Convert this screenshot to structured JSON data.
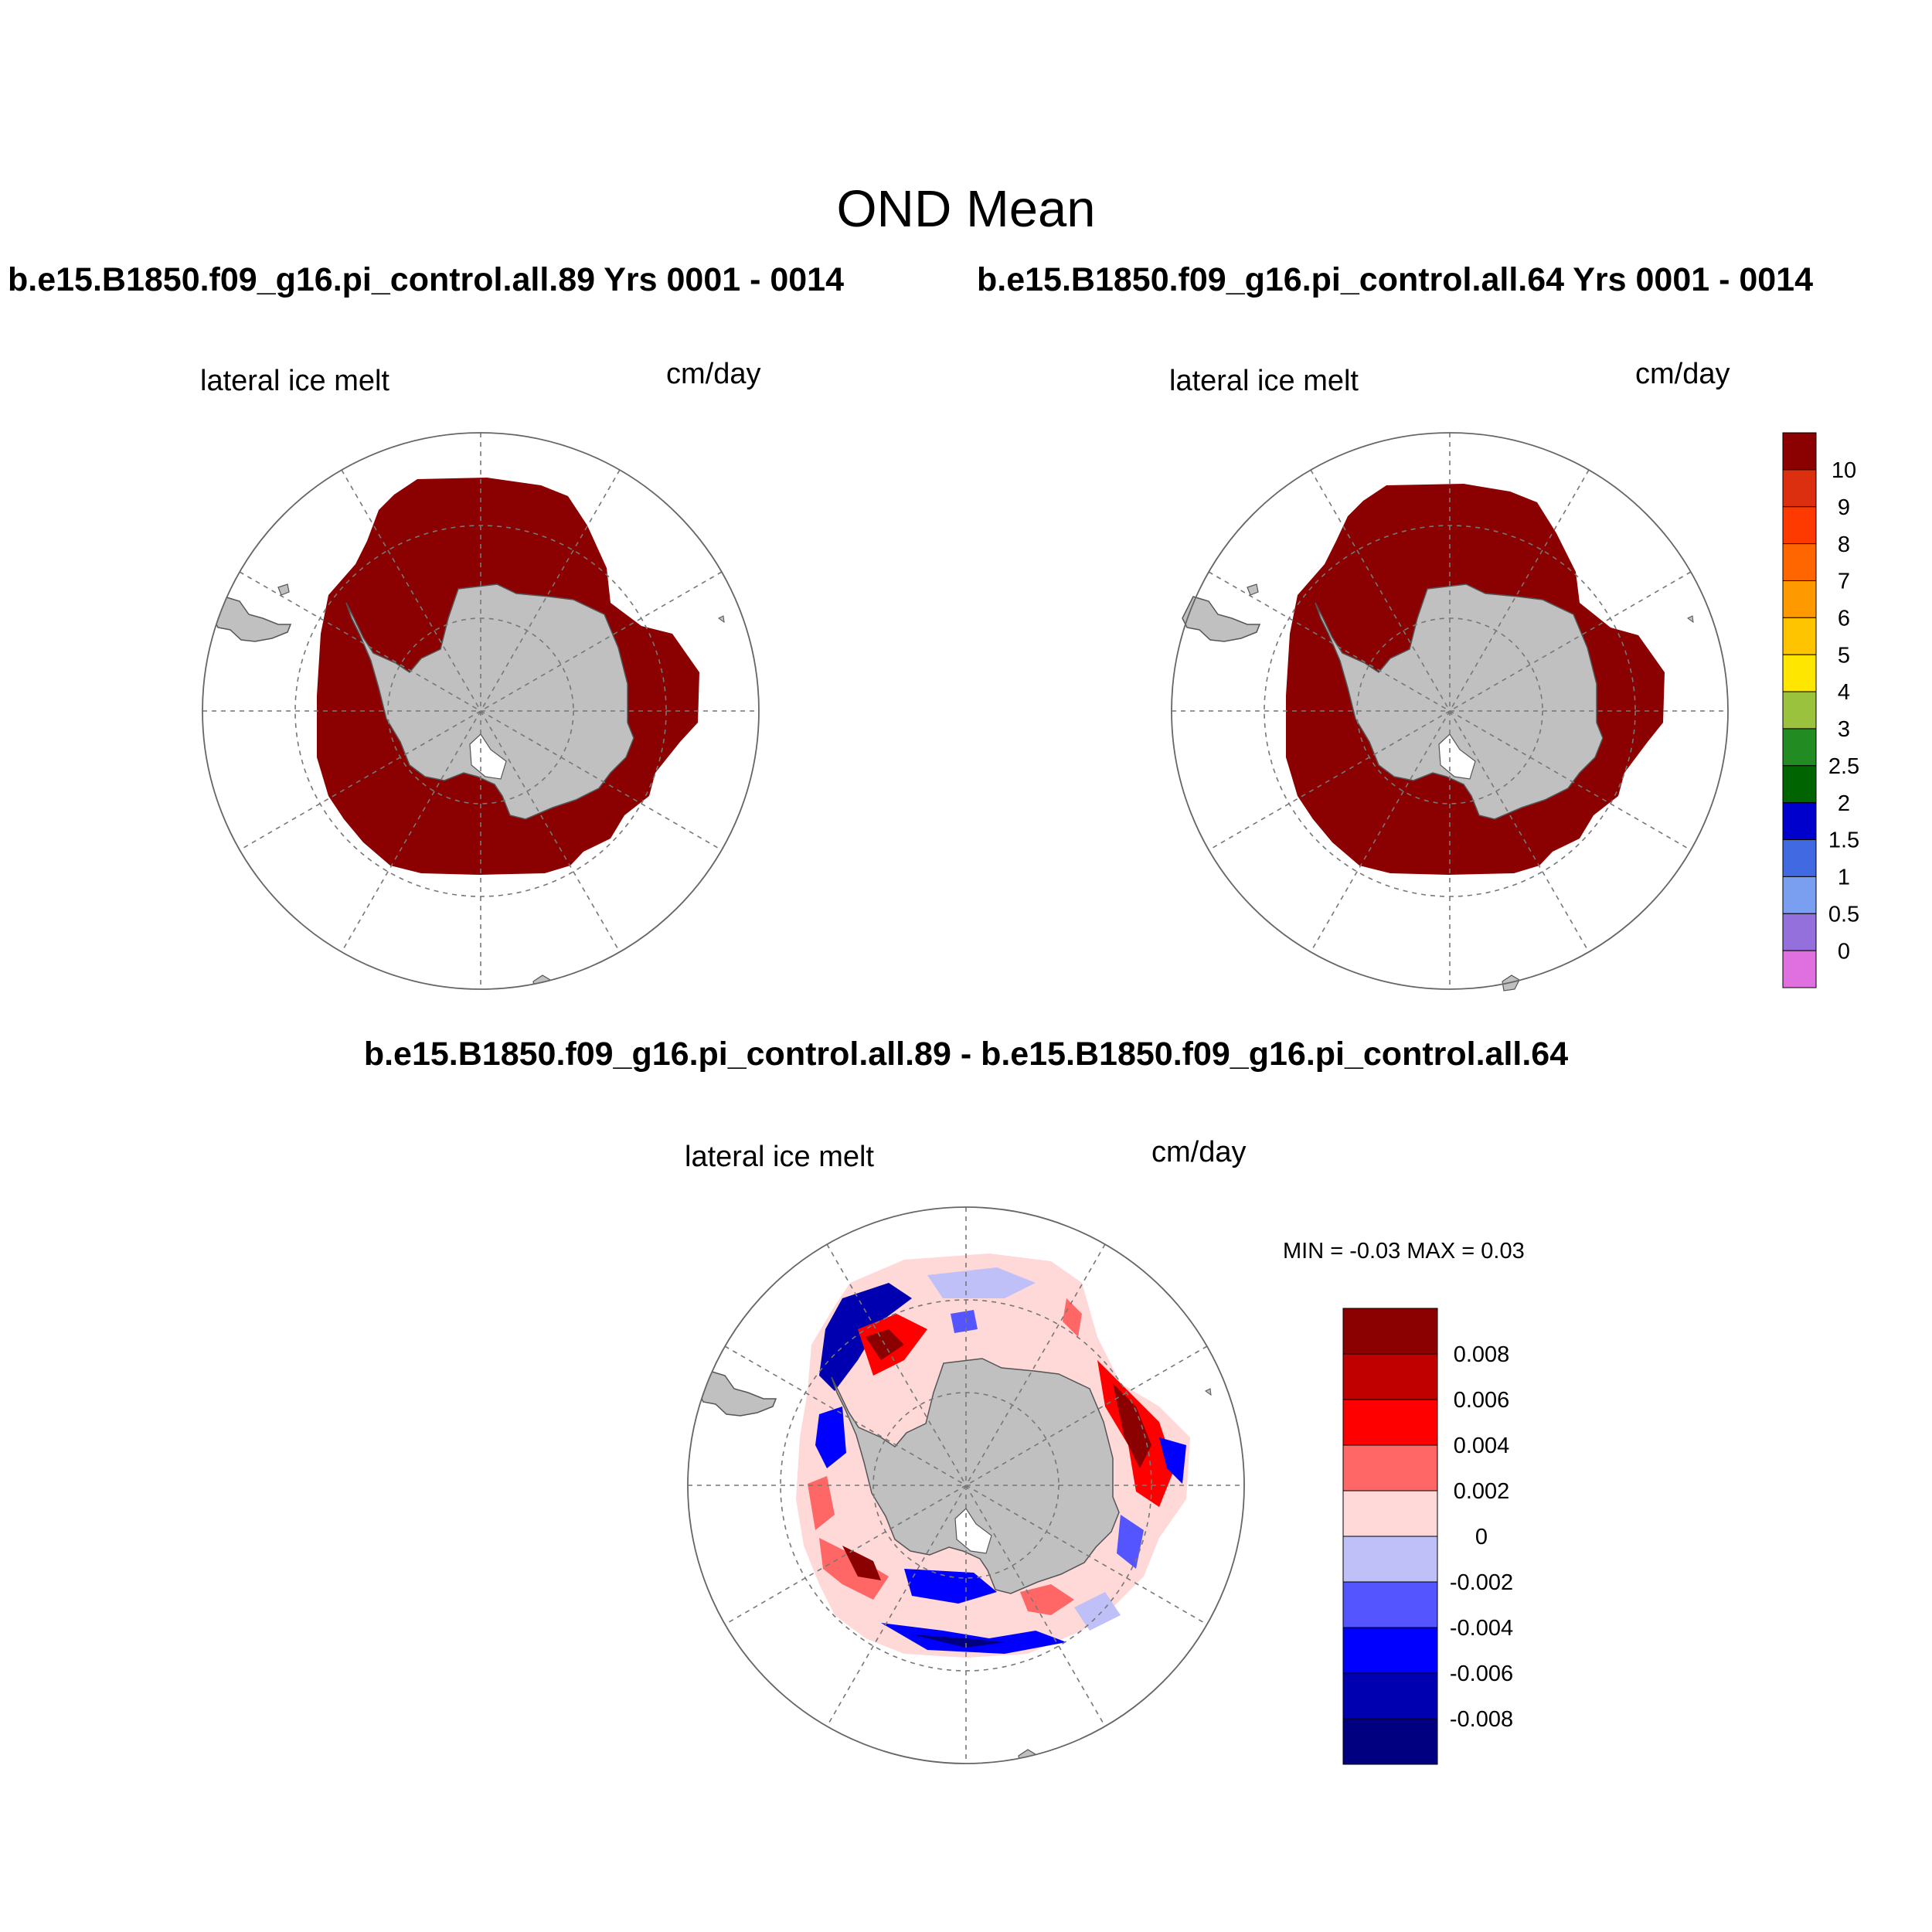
{
  "figure": {
    "title": "OND Mean",
    "panel_left_title": "b.e15.B1850.f09_g16.pi_control.all.89  Yrs 0001 - 0014",
    "panel_right_title": "b.e15.B1850.f09_g16.pi_control.all.64  Yrs 0001 - 0014",
    "diff_title": "b.e15.B1850.f09_g16.pi_control.all.89 - b.e15.B1850.f09_g16.pi_control.all.64",
    "variable_label": "lateral ice melt",
    "units_label": "cm/day",
    "diff_min_max": "MIN =  -0.03 MAX =   0.03"
  },
  "colorbar_main": {
    "labels": [
      "10",
      "9",
      "8",
      "7",
      "6",
      "5",
      "4",
      "3",
      "2.5",
      "2",
      "1.5",
      "1",
      "0.5",
      "0"
    ],
    "colors": [
      "#8b0000",
      "#dc2f0f",
      "#ff3a00",
      "#ff6600",
      "#ff9900",
      "#ffc400",
      "#ffe600",
      "#9ac23c",
      "#228b22",
      "#006400",
      "#0000cd",
      "#4169e1",
      "#7b9ff0",
      "#9370db",
      "#e070e0"
    ]
  },
  "colorbar_diff": {
    "labels": [
      "0.008",
      "0.006",
      "0.004",
      "0.002",
      "0",
      "-0.002",
      "-0.004",
      "-0.006",
      "-0.008"
    ],
    "colors": [
      "#8b0000",
      "#c00000",
      "#ff0000",
      "#ff6666",
      "#ffd8d8",
      "#c0c0f8",
      "#5555ff",
      "#0000ff",
      "#0000b0",
      "#000080"
    ]
  },
  "map_colors": {
    "ice_fill": "#8b0000",
    "land": "#c0c0c0",
    "ocean": "#ffffff",
    "grid": "#777777"
  }
}
